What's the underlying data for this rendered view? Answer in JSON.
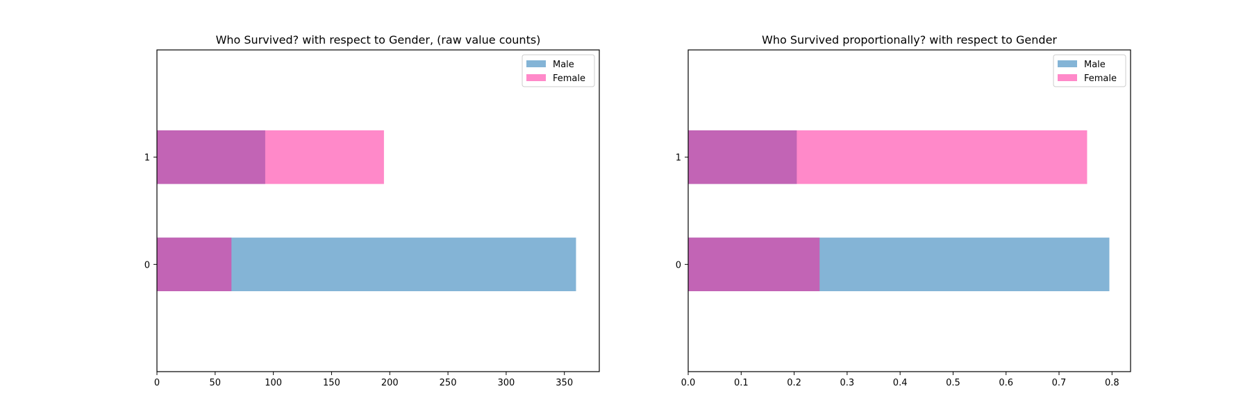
{
  "chart_data": [
    {
      "type": "bar",
      "orientation": "horizontal",
      "title": "Who Survived? with respect to Gender, (raw value counts)",
      "categories": [
        "0",
        "1"
      ],
      "series": [
        {
          "name": "Male",
          "values": [
            360,
            93
          ],
          "color": "#1f77b4",
          "alpha": 0.55
        },
        {
          "name": "Female",
          "values": [
            64,
            195
          ],
          "color": "#ff1493",
          "alpha": 0.5
        }
      ],
      "xlim": [
        0,
        380
      ],
      "xticks": [
        0,
        50,
        100,
        150,
        200,
        250,
        300,
        350
      ],
      "xticklabels": [
        "0",
        "50",
        "100",
        "150",
        "200",
        "250",
        "300",
        "350"
      ],
      "legend": "top-right",
      "grid": false
    },
    {
      "type": "bar",
      "orientation": "horizontal",
      "title": "Who Survived proportionally? with respect to Gender",
      "categories": [
        "0",
        "1"
      ],
      "series": [
        {
          "name": "Male",
          "values": [
            0.795,
            0.205
          ],
          "color": "#1f77b4",
          "alpha": 0.55
        },
        {
          "name": "Female",
          "values": [
            0.248,
            0.753
          ],
          "color": "#ff1493",
          "alpha": 0.5
        }
      ],
      "xlim": [
        0,
        0.835
      ],
      "xticks": [
        0.0,
        0.1,
        0.2,
        0.3,
        0.4,
        0.5,
        0.6,
        0.7,
        0.8
      ],
      "xticklabels": [
        "0.0",
        "0.1",
        "0.2",
        "0.3",
        "0.4",
        "0.5",
        "0.6",
        "0.7",
        "0.8"
      ],
      "legend": "top-right",
      "grid": false
    }
  ]
}
